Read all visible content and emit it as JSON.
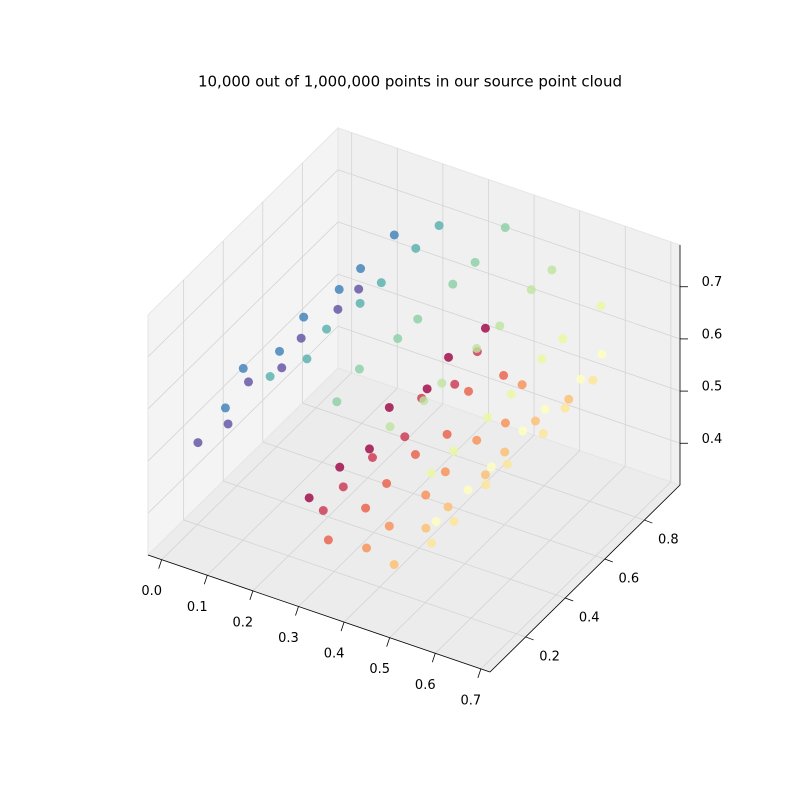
{
  "chart_data": {
    "type": "scatter3d",
    "title": "10,000 out of 1,000,000 points in our source point cloud",
    "cmap": "Spectral",
    "grid": true,
    "xlim": [
      -0.03,
      0.72
    ],
    "ylim": [
      0.02,
      0.98
    ],
    "zlim": [
      0.32,
      0.78
    ],
    "xticks": [
      {
        "value": 0,
        "label": "0.0"
      },
      0.1,
      0.2,
      0.3,
      0.4,
      0.5,
      0.6,
      0.7
    ],
    "yticks": [
      0.2,
      0.4,
      0.6,
      0.8
    ],
    "zticks": [
      0.4,
      0.5,
      0.6,
      0.7
    ],
    "x": [
      0.315,
      0.305,
      0.357,
      0.405,
      0.499,
      0.555,
      0.577,
      0.568,
      0.469,
      0.361,
      0.219,
      0.116,
      0.044,
      0.297,
      0.318,
      0.34,
      0.424,
      0.492,
      0.55,
      0.593,
      0.548,
      0.482,
      0.354,
      0.23,
      0.102,
      0.06,
      0.31,
      0.301,
      0.359,
      0.417,
      0.487,
      0.566,
      0.573,
      0.561,
      0.475,
      0.365,
      0.216,
      0.118,
      0.042,
      0.293,
      0.32,
      0.352,
      0.412,
      0.503,
      0.546,
      0.586,
      0.554,
      0.486,
      0.351,
      0.232,
      0.1,
      0.055,
      0.312,
      0.313,
      0.347,
      0.428,
      0.483,
      0.559,
      0.579,
      0.565,
      0.472,
      0.367,
      0.214,
      0.113,
      0.038,
      0.305,
      0.308,
      0.363,
      0.408,
      0.496,
      0.552,
      0.59,
      0.551,
      0.488,
      0.349,
      0.227,
      0.096,
      0.057,
      0.3,
      0.324,
      0.343,
      0.421,
      0.489,
      0.563,
      0.576,
      0.567,
      0.47,
      0.362,
      0.21,
      0.115,
      0.05
    ],
    "y": [
      0.93,
      0.912,
      0.925,
      0.908,
      0.927,
      0.92,
      0.915,
      0.931,
      0.911,
      0.924,
      0.917,
      0.928,
      0.914,
      0.785,
      0.768,
      0.787,
      0.78,
      0.775,
      0.791,
      0.771,
      0.784,
      0.777,
      0.788,
      0.774,
      0.79,
      0.772,
      0.647,
      0.64,
      0.635,
      0.651,
      0.631,
      0.644,
      0.637,
      0.648,
      0.634,
      0.65,
      0.632,
      0.645,
      0.628,
      0.495,
      0.511,
      0.491,
      0.504,
      0.497,
      0.508,
      0.494,
      0.51,
      0.492,
      0.505,
      0.488,
      0.507,
      0.5,
      0.351,
      0.364,
      0.357,
      0.368,
      0.354,
      0.37,
      0.352,
      0.365,
      0.348,
      0.367,
      0.36,
      0.355,
      0.371,
      0.217,
      0.228,
      0.214,
      0.23,
      0.212,
      0.225,
      0.208,
      0.227,
      0.22,
      0.215,
      0.231,
      0.211,
      0.224,
      0.074,
      0.09,
      0.072,
      0.085,
      0.068,
      0.087,
      0.08,
      0.075,
      0.091,
      0.071,
      0.084,
      0.077,
      0.088
    ],
    "z": [
      0.518,
      0.477,
      0.442,
      0.445,
      0.438,
      0.494,
      0.552,
      0.636,
      0.683,
      0.727,
      0.691,
      0.638,
      0.518,
      0.511,
      0.472,
      0.458,
      0.425,
      0.451,
      0.487,
      0.563,
      0.622,
      0.699,
      0.709,
      0.704,
      0.621,
      0.537,
      0.506,
      0.488,
      0.438,
      0.438,
      0.444,
      0.498,
      0.549,
      0.638,
      0.681,
      0.722,
      0.687,
      0.64,
      0.53,
      0.522,
      0.468,
      0.451,
      0.431,
      0.455,
      0.484,
      0.565,
      0.62,
      0.694,
      0.705,
      0.706,
      0.633,
      0.525,
      0.502,
      0.481,
      0.444,
      0.442,
      0.441,
      0.5,
      0.547,
      0.633,
      0.677,
      0.724,
      0.699,
      0.628,
      0.541,
      0.515,
      0.474,
      0.455,
      0.428,
      0.457,
      0.482,
      0.56,
      0.616,
      0.696,
      0.717,
      0.694,
      0.644,
      0.521,
      0.508,
      0.485,
      0.441,
      0.444,
      0.439,
      0.495,
      0.543,
      0.635,
      0.689,
      0.712,
      0.71,
      0.624,
      0.534
    ],
    "c": [
      0,
      0.083,
      0.167,
      0.25,
      0.333,
      0.417,
      0.5,
      0.583,
      0.667,
      0.75,
      0.833,
      0.917,
      1,
      0,
      0.083,
      0.167,
      0.25,
      0.333,
      0.417,
      0.5,
      0.583,
      0.667,
      0.75,
      0.833,
      0.917,
      1,
      0,
      0.083,
      0.167,
      0.25,
      0.333,
      0.417,
      0.5,
      0.583,
      0.667,
      0.75,
      0.833,
      0.917,
      1,
      0,
      0.083,
      0.167,
      0.25,
      0.333,
      0.417,
      0.5,
      0.583,
      0.667,
      0.75,
      0.833,
      0.917,
      1,
      0,
      0.083,
      0.167,
      0.25,
      0.333,
      0.417,
      0.5,
      0.583,
      0.667,
      0.75,
      0.833,
      0.917,
      1,
      0,
      0.083,
      0.167,
      0.25,
      0.333,
      0.417,
      0.5,
      0.583,
      0.667,
      0.75,
      0.833,
      0.917,
      1,
      0,
      0.083,
      0.167,
      0.25,
      0.333,
      0.417,
      0.5,
      0.583,
      0.667,
      0.75,
      0.833,
      0.917,
      1
    ]
  }
}
